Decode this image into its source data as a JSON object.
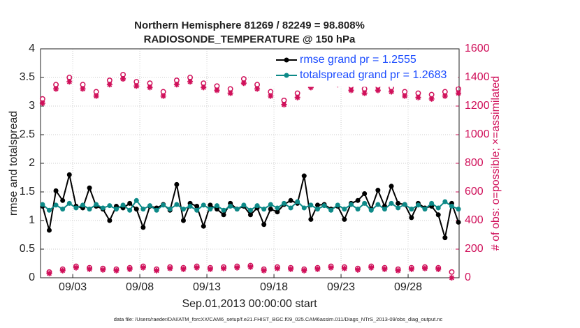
{
  "chart_data": {
    "type": "line",
    "title": "Northern Hemisphere 81269 / 82249 = 98.808%",
    "subtitle": "RADIOSONDE_TEMPERATURE @ 150 hPa",
    "x_label": "Sep.01,2013 00:00:00 start",
    "y_label": "rmse and totalspread",
    "y2_label": "# of obs: o=possible; ×=assimilated",
    "note": "data file: /Users/raeder/DAI/ATM_forcXX/CAM6_setup/f.e21.FHIST_BGC.f09_025.CAM6assim.011/Diags_NTrS_2013-09/obs_diag_output.nc",
    "grid": true,
    "legend": "upper right",
    "xlim": [
      0.6,
      31.8
    ],
    "xticks": [
      {
        "value": 3,
        "label": "09/03"
      },
      {
        "value": 8,
        "label": "09/08"
      },
      {
        "value": 13,
        "label": "09/13"
      },
      {
        "value": 18,
        "label": "09/18"
      },
      {
        "value": 23,
        "label": "09/23"
      },
      {
        "value": 28,
        "label": "09/28"
      }
    ],
    "ylim": [
      0,
      4
    ],
    "yticks": [
      0,
      0.5,
      1,
      1.5,
      2,
      2.5,
      3,
      3.5,
      4
    ],
    "y2lim": [
      0,
      1600
    ],
    "y2ticks": [
      0,
      200,
      400,
      600,
      800,
      1000,
      1200,
      1400,
      1600
    ],
    "y2_color": "#d0105a",
    "x": [
      0.75,
      1.25,
      1.75,
      2.25,
      2.75,
      3.25,
      3.75,
      4.25,
      4.75,
      5.25,
      5.75,
      6.25,
      6.75,
      7.25,
      7.75,
      8.25,
      8.75,
      9.25,
      9.75,
      10.25,
      10.75,
      11.25,
      11.75,
      12.25,
      12.75,
      13.25,
      13.75,
      14.25,
      14.75,
      15.25,
      15.75,
      16.25,
      16.75,
      17.25,
      17.75,
      18.25,
      18.75,
      19.25,
      19.75,
      20.25,
      20.75,
      21.25,
      21.75,
      22.25,
      22.75,
      23.25,
      23.75,
      24.25,
      24.75,
      25.25,
      25.75,
      26.25,
      26.75,
      27.25,
      27.75,
      28.25,
      28.75,
      29.25,
      29.75,
      30.25,
      30.75,
      31.25,
      31.75
    ],
    "series": [
      {
        "name": "rmse grand pr = 1.2555",
        "color": "#000000",
        "marker": "dot",
        "line": true,
        "values": [
          1.25,
          0.83,
          1.52,
          1.35,
          1.8,
          1.25,
          1.22,
          1.57,
          1.25,
          1.2,
          1.0,
          1.25,
          1.22,
          1.3,
          1.2,
          0.88,
          1.25,
          1.22,
          1.28,
          1.18,
          1.63,
          1.0,
          1.3,
          1.25,
          0.9,
          1.27,
          1.2,
          1.1,
          1.3,
          1.2,
          1.25,
          1.1,
          1.22,
          0.93,
          1.2,
          1.15,
          1.28,
          1.35,
          1.3,
          1.78,
          1.02,
          1.27,
          1.28,
          1.2,
          1.25,
          1.02,
          1.3,
          1.35,
          1.47,
          1.2,
          1.53,
          1.25,
          1.6,
          1.3,
          1.28,
          1.05,
          1.3,
          1.22,
          1.25,
          1.1,
          0.7,
          1.3,
          0.97
        ]
      },
      {
        "name": "totalspread grand pr = 1.2683",
        "color": "#0d8a88",
        "marker": "dot",
        "line": true,
        "values": [
          1.28,
          1.18,
          1.27,
          1.2,
          1.3,
          1.22,
          1.27,
          1.2,
          1.28,
          1.22,
          1.26,
          1.2,
          1.27,
          1.18,
          1.35,
          1.2,
          1.26,
          1.18,
          1.27,
          1.2,
          1.28,
          1.2,
          1.25,
          1.18,
          1.27,
          1.2,
          1.26,
          1.18,
          1.25,
          1.2,
          1.27,
          1.18,
          1.26,
          1.2,
          1.28,
          1.22,
          1.3,
          1.22,
          1.33,
          1.22,
          1.27,
          1.2,
          1.26,
          1.18,
          1.27,
          1.2,
          1.28,
          1.2,
          1.3,
          1.18,
          1.28,
          1.2,
          1.3,
          1.22,
          1.28,
          1.2,
          1.27,
          1.2,
          1.3,
          1.22,
          1.33,
          1.25,
          1.2
        ]
      },
      {
        "color": "#d0105a",
        "marker": "o",
        "line": false,
        "axis": "y2",
        "values": [
          1250,
          40,
          1350,
          60,
          1400,
          80,
          1350,
          70,
          1300,
          65,
          1380,
          60,
          1420,
          70,
          1370,
          80,
          1360,
          60,
          1300,
          75,
          1380,
          70,
          1400,
          80,
          1360,
          70,
          1340,
          75,
          1320,
          80,
          1390,
          85,
          1350,
          60,
          1300,
          75,
          1240,
          70,
          1290,
          60,
          1360,
          70,
          1390,
          80,
          1380,
          75,
          1340,
          65,
          1320,
          80,
          1340,
          70,
          1330,
          60,
          1300,
          70,
          1290,
          75,
          1280,
          70,
          1300,
          40,
          1320
        ]
      },
      {
        "color": "#d0105a",
        "marker": "*",
        "line": false,
        "axis": "y2",
        "values": [
          1220,
          30,
          1320,
          50,
          1370,
          70,
          1320,
          60,
          1270,
          55,
          1350,
          50,
          1390,
          60,
          1340,
          70,
          1330,
          50,
          1270,
          65,
          1350,
          60,
          1370,
          70,
          1330,
          60,
          1310,
          65,
          1290,
          70,
          1360,
          75,
          1320,
          50,
          1270,
          65,
          1210,
          60,
          1260,
          50,
          1330,
          60,
          1360,
          70,
          1350,
          65,
          1310,
          55,
          1290,
          70,
          1310,
          60,
          1300,
          50,
          1270,
          60,
          1260,
          65,
          1250,
          60,
          1270,
          0,
          1290
        ]
      }
    ]
  }
}
